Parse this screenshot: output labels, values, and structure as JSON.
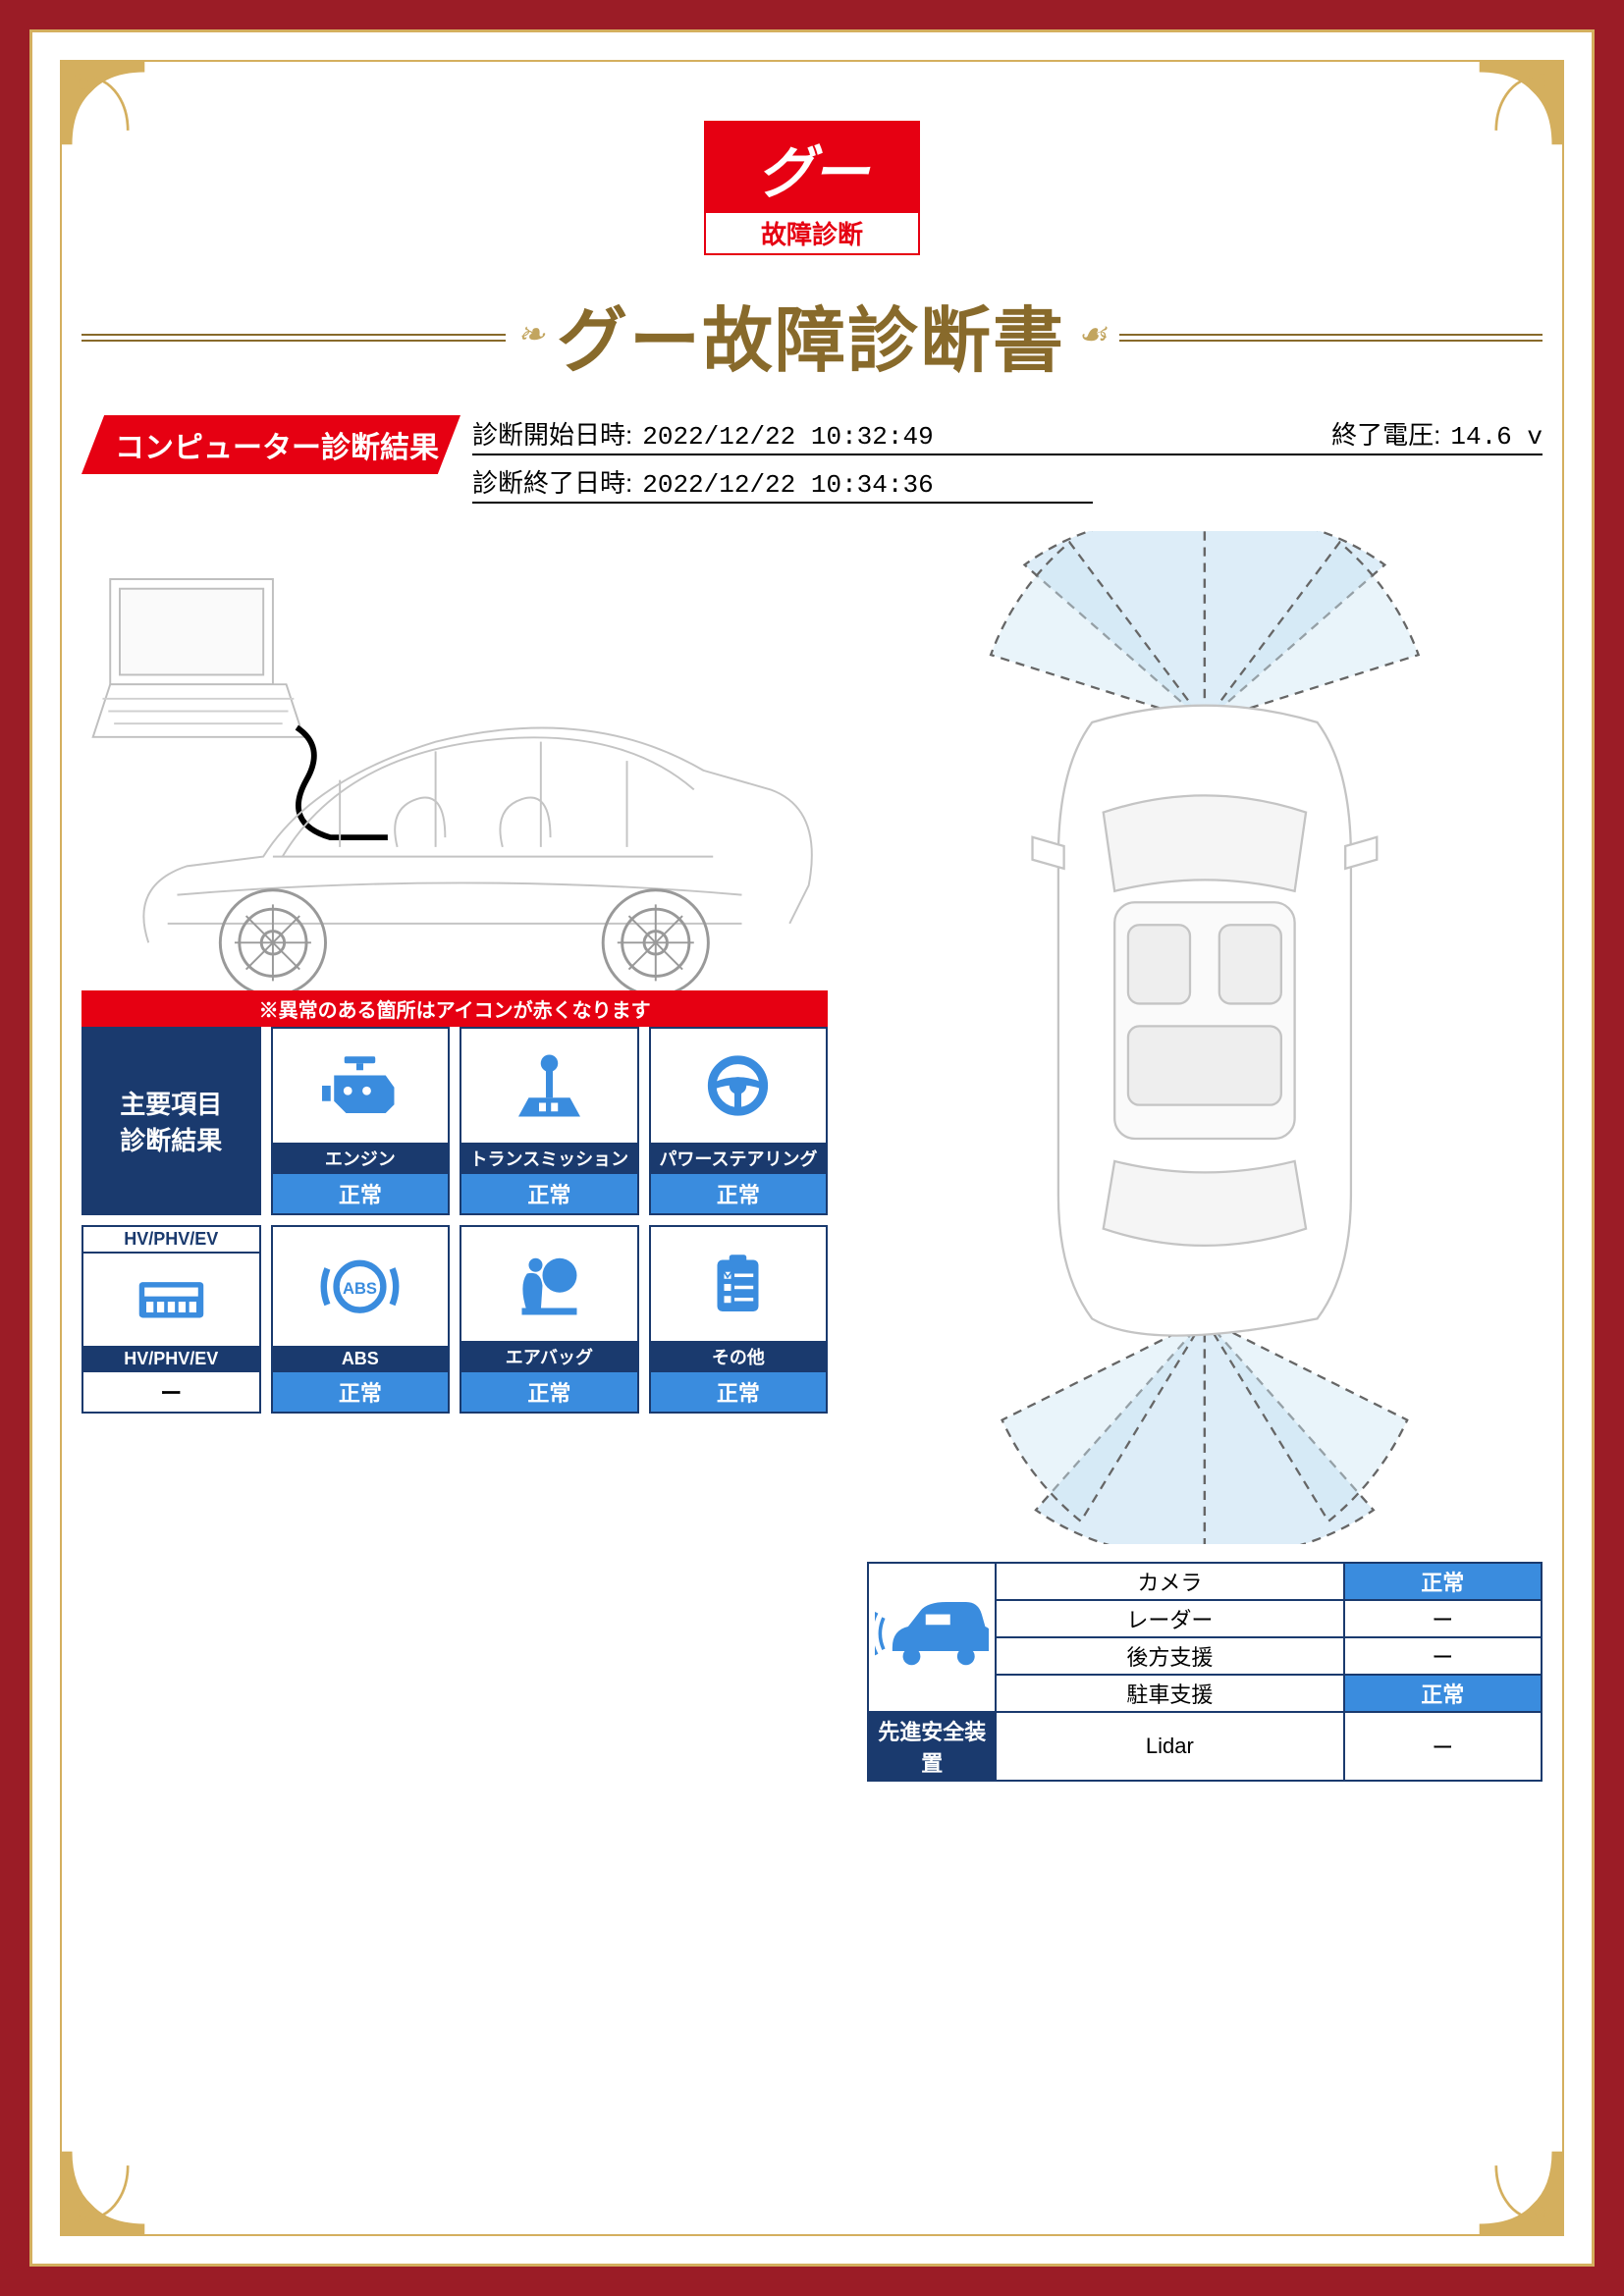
{
  "logo": {
    "main": "グー",
    "sub": "故障診断"
  },
  "title": "グー故障診断書",
  "section_header": "コンピューター診断結果",
  "meta": {
    "start_label": "診断開始日時:",
    "start_value": "2022/12/22 10:32:49",
    "voltage_label": "終了電圧:",
    "voltage_value": "14.6 v",
    "end_label": "診断終了日時:",
    "end_value": "2022/12/22 10:34:36"
  },
  "red_banner": "※異常のある箇所はアイコンが赤くなります",
  "title_card": {
    "line1": "主要項目",
    "line2": "診断結果"
  },
  "status_ok": "正常",
  "status_none": "ー",
  "components": {
    "engine": {
      "name": "エンジン",
      "status": "正常"
    },
    "transmission": {
      "name": "トランスミッション",
      "status": "正常"
    },
    "power_steering": {
      "name": "パワーステアリング",
      "status": "正常"
    },
    "hv_header": "HV/PHV/EV",
    "hv": {
      "name": "HV/PHV/EV",
      "status": "ー"
    },
    "abs": {
      "name": "ABS",
      "status": "正常"
    },
    "airbag": {
      "name": "エアバッグ",
      "status": "正常"
    },
    "other": {
      "name": "その他",
      "status": "正常"
    }
  },
  "safety": {
    "header": "先進安全装置",
    "rows": {
      "camera": {
        "label": "カメラ",
        "value": "正常",
        "ok": true
      },
      "radar": {
        "label": "レーダー",
        "value": "ー",
        "ok": false
      },
      "rear": {
        "label": "後方支援",
        "value": "ー",
        "ok": false
      },
      "parking": {
        "label": "駐車支援",
        "value": "正常",
        "ok": true
      },
      "lidar": {
        "label": "Lidar",
        "value": "ー",
        "ok": false
      }
    }
  },
  "colors": {
    "frame_red": "#9b1c26",
    "gold": "#d4af5e",
    "title_brown": "#886a2b",
    "brand_red": "#e60012",
    "navy": "#1a3a6e",
    "blue": "#3a8cde",
    "line_light": "#c9c9c9"
  }
}
